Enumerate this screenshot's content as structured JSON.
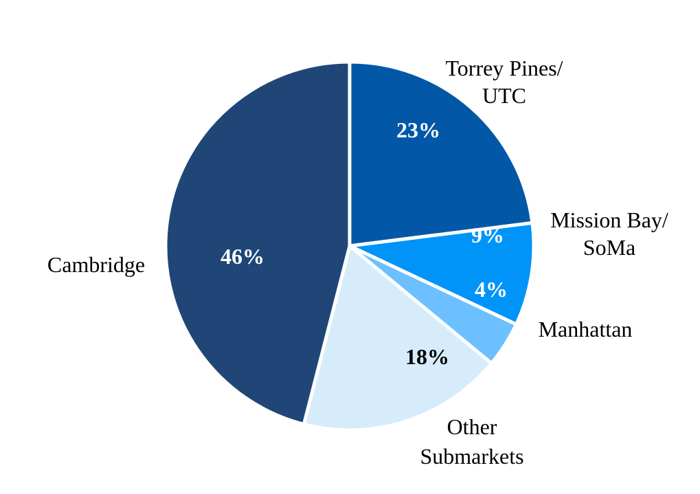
{
  "chart_data": {
    "type": "pie",
    "title": "",
    "slices": [
      {
        "name": "Torrey Pines/ UTC",
        "label_lines": [
          "Torrey Pines/",
          "UTC"
        ],
        "value": 23,
        "pct_label": "23%",
        "color": "#0257A7",
        "pct_color": "#FFFFFF"
      },
      {
        "name": "Mission Bay/ SoMa",
        "label_lines": [
          "Mission Bay/",
          "SoMa"
        ],
        "value": 9,
        "pct_label": "9%",
        "color": "#0094F8",
        "pct_color": "#FFFFFF"
      },
      {
        "name": "Manhattan",
        "label_lines": [
          "Manhattan"
        ],
        "value": 4,
        "pct_label": "4%",
        "color": "#6CC0FF",
        "pct_color": "#FFFFFF"
      },
      {
        "name": "Other Submarkets",
        "label_lines": [
          "Other",
          "Submarkets"
        ],
        "value": 18,
        "pct_label": "18%",
        "color": "#D6ECFB",
        "pct_color": "#000000"
      },
      {
        "name": "Cambridge",
        "label_lines": [
          "Cambridge"
        ],
        "value": 46,
        "pct_label": "46%",
        "color": "#204677",
        "pct_color": "#FFFFFF"
      }
    ]
  }
}
